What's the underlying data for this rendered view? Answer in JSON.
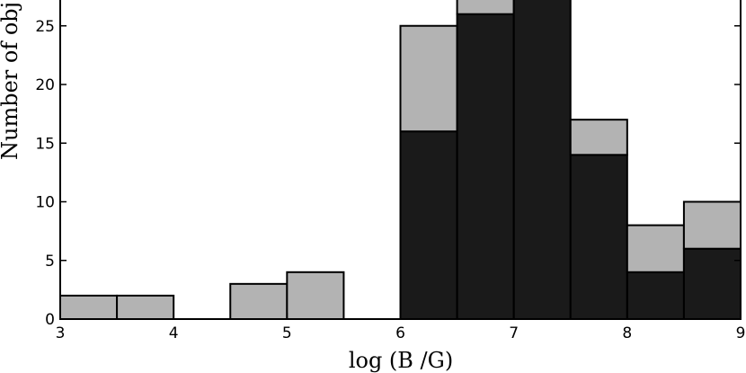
{
  "chart_data": {
    "type": "bar",
    "stacked": true,
    "xlabel": "log (B /G)",
    "ylabel": "Number of obj",
    "xlim": [
      3,
      9
    ],
    "ylim_visible": [
      0,
      27.5
    ],
    "x_ticks": [
      "3",
      "4",
      "5",
      "6",
      "7",
      "8",
      "9"
    ],
    "y_ticks": [
      "0",
      "5",
      "10",
      "15",
      "20",
      "25"
    ],
    "bin_edges": [
      3,
      3.5,
      4,
      4.5,
      5,
      5.5,
      6,
      6.5,
      7,
      7.5,
      8,
      8.5,
      9
    ],
    "series": [
      {
        "color": "#1a1a1a",
        "values": [
          0,
          0,
          0,
          0,
          0,
          0,
          16,
          26,
          28,
          14,
          4,
          6
        ]
      },
      {
        "color": "#b3b3b3",
        "values": [
          2,
          2,
          0,
          3,
          4,
          0,
          9,
          2,
          0,
          3,
          4,
          4
        ]
      }
    ],
    "grid": false
  }
}
